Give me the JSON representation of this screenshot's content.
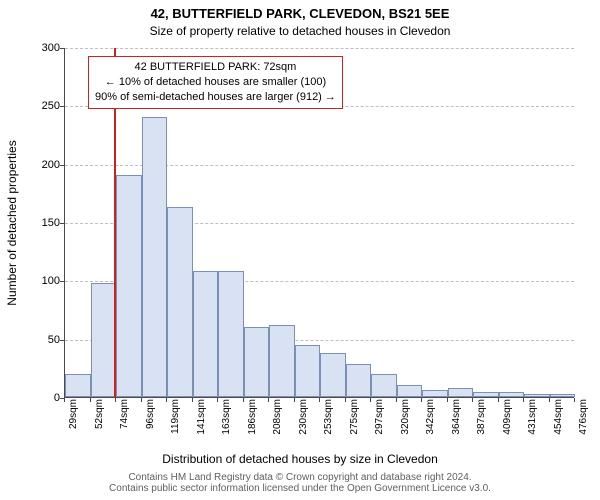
{
  "title_main": "42, BUTTERFIELD PARK, CLEVEDON, BS21 5EE",
  "title_sub": "Size of property relative to detached houses in Clevedon",
  "ylabel": "Number of detached properties",
  "xlabel": "Distribution of detached houses by size in Clevedon",
  "footer_line1": "Contains HM Land Registry data © Crown copyright and database right 2024.",
  "footer_line2": "Contains public sector information licensed under the Open Government Licence v3.0.",
  "chart": {
    "type": "histogram",
    "ylim": [
      0,
      300
    ],
    "yticks": [
      0,
      50,
      100,
      150,
      200,
      250,
      300
    ],
    "bar_fill": "#d8e2f2",
    "bar_border": "#7b90b5",
    "grid_color": "#bfbfbf",
    "axis_color": "#4a4a4a",
    "background": "#ffffff",
    "refline_value": 72,
    "refline_color": "#d02020",
    "xticks": [
      "29sqm",
      "52sqm",
      "74sqm",
      "96sqm",
      "119sqm",
      "141sqm",
      "163sqm",
      "186sqm",
      "208sqm",
      "230sqm",
      "253sqm",
      "275sqm",
      "297sqm",
      "320sqm",
      "342sqm",
      "364sqm",
      "387sqm",
      "409sqm",
      "431sqm",
      "454sqm",
      "476sqm"
    ],
    "values": [
      20,
      98,
      190,
      240,
      163,
      108,
      108,
      60,
      62,
      45,
      38,
      28,
      20,
      10,
      6,
      8,
      4,
      4,
      3,
      3
    ]
  },
  "annotation": {
    "line1": "42 BUTTERFIELD PARK: 72sqm",
    "line2": "← 10% of detached houses are smaller (100)",
    "line3": "90% of semi-detached houses are larger (912) →"
  }
}
